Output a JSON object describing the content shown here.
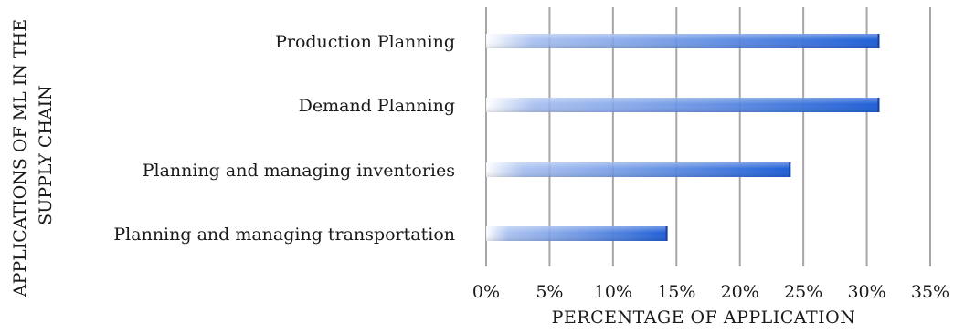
{
  "chart_data": {
    "type": "bar",
    "orientation": "horizontal",
    "categories": [
      "Production Planning",
      "Demand Planning",
      "Planning and managing inventories",
      "Planning and managing transportation"
    ],
    "values": [
      31,
      31,
      24,
      14.3
    ],
    "value_unit": "%",
    "xlabel": "PERCENTAGE OF APPLICATION",
    "ylabel_lines": [
      "APPLICATIONS OF ML IN THE",
      "SUPPLY CHAIN"
    ],
    "xlim": [
      0,
      35
    ],
    "xticks": [
      "0%",
      "5%",
      "10%",
      "15%",
      "20%",
      "25%",
      "30%",
      "35%"
    ],
    "grid": "vertical",
    "legend": "none",
    "colors": {
      "bar_start": "#ffffff",
      "bar_end": "#1f5fd6",
      "bar_edge": "#1a3f9c",
      "grid": "#a6a6a6"
    }
  }
}
